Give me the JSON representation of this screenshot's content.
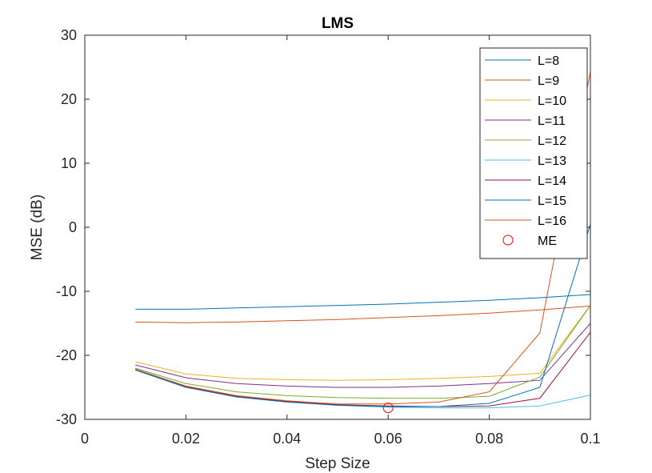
{
  "chart_data": {
    "type": "line",
    "title": "LMS",
    "xlabel": "Step Size",
    "ylabel": "MSE (dB)",
    "xlim": [
      0,
      0.1
    ],
    "ylim": [
      -30,
      30
    ],
    "x_ticks": [
      0,
      0.02,
      0.04,
      0.06,
      0.08,
      0.1
    ],
    "x_tick_labels": [
      "0",
      "0.02",
      "0.04",
      "0.06",
      "0.08",
      "0.1"
    ],
    "y_ticks": [
      -30,
      -20,
      -10,
      0,
      10,
      20,
      30
    ],
    "y_tick_labels": [
      "-30",
      "-20",
      "-10",
      "0",
      "10",
      "20",
      "30"
    ],
    "grid": false,
    "legend_position": "top-right",
    "x": [
      0.01,
      0.02,
      0.03,
      0.04,
      0.05,
      0.06,
      0.07,
      0.08,
      0.09,
      0.1
    ],
    "series": [
      {
        "name": "L=8",
        "color": "#0072BD",
        "values": [
          -12.8,
          -12.8,
          -12.6,
          -12.4,
          -12.2,
          -12.0,
          -11.7,
          -11.4,
          -11.0,
          -10.5
        ]
      },
      {
        "name": "L=9",
        "color": "#D95319",
        "values": [
          -14.8,
          -14.9,
          -14.8,
          -14.6,
          -14.4,
          -14.1,
          -13.8,
          -13.4,
          -12.9,
          -12.3
        ]
      },
      {
        "name": "L=10",
        "color": "#EDB120",
        "values": [
          -21.0,
          -22.9,
          -23.6,
          -23.8,
          -23.9,
          -23.8,
          -23.6,
          -23.3,
          -22.8,
          -12.2
        ]
      },
      {
        "name": "L=11",
        "color": "#7E2F8E",
        "values": [
          -21.5,
          -23.5,
          -24.4,
          -24.8,
          -25.0,
          -25.0,
          -24.8,
          -24.4,
          -23.9,
          -15.0
        ]
      },
      {
        "name": "L=12",
        "color": "#77AC30",
        "values": [
          -22.0,
          -24.4,
          -25.7,
          -26.3,
          -26.6,
          -26.7,
          -26.7,
          -26.4,
          -23.4,
          -12.2
        ]
      },
      {
        "name": "L=13",
        "color": "#4DBEEE",
        "values": [
          -22.1,
          -24.8,
          -26.3,
          -27.2,
          -27.8,
          -28.1,
          -28.2,
          -28.2,
          -27.9,
          -26.2
        ]
      },
      {
        "name": "L=14",
        "color": "#A2142F",
        "values": [
          -22.2,
          -24.9,
          -26.4,
          -27.2,
          -27.7,
          -27.9,
          -28.0,
          -27.9,
          -26.7,
          -16.4
        ]
      },
      {
        "name": "L=15",
        "color": "#0072BD",
        "values": [
          -22.3,
          -25.0,
          -26.5,
          -27.3,
          -27.8,
          -28.0,
          -28.0,
          -27.5,
          -25.0,
          0.5
        ]
      },
      {
        "name": "L=16",
        "color": "#D95319",
        "values": [
          -22.2,
          -24.8,
          -26.3,
          -27.1,
          -27.6,
          -27.6,
          -27.3,
          -25.7,
          -16.5,
          24.3
        ]
      }
    ],
    "markers": [
      {
        "name": "ME",
        "color": "#FF0000",
        "shape": "circle-open",
        "x": 0.06,
        "y": -28.2
      }
    ]
  }
}
